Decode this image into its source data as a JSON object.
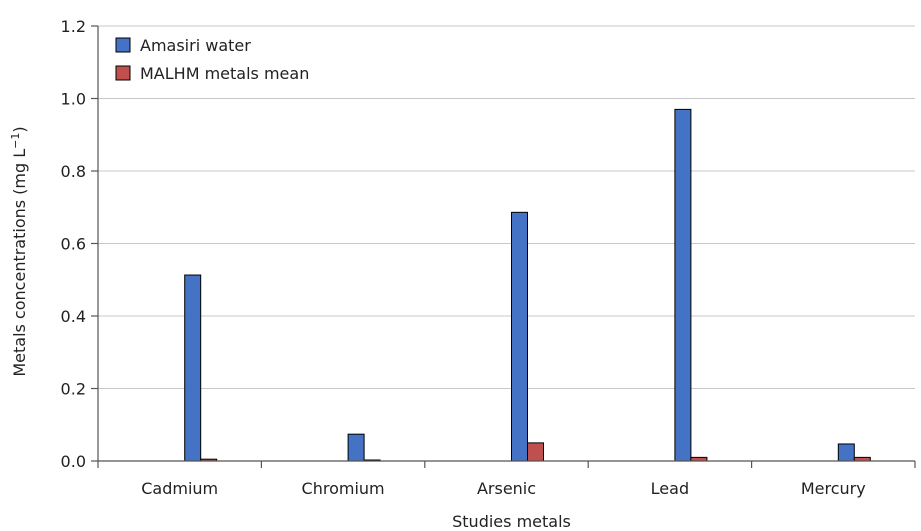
{
  "chart_data": {
    "type": "bar",
    "title": "",
    "xlabel": "Studies metals",
    "ylabel": "Metals concentrations (mg L",
    "ylabel_sup": "−1",
    "ylabel_close": ")",
    "ylim": [
      0,
      1.2
    ],
    "yticks": [
      0.0,
      0.2,
      0.4,
      0.6,
      0.8,
      1.0,
      1.2
    ],
    "ytick_labels": [
      "0.0",
      "0.2",
      "0.4",
      "0.6",
      "0.8",
      "1.0",
      "1.2"
    ],
    "grid": true,
    "legend_position": "top-left",
    "categories": [
      "Cadmium",
      "Chromium",
      "Arsenic",
      "Lead",
      "Mercury"
    ],
    "series": [
      {
        "name": "Amasiri water",
        "color": "#4472c4",
        "values": [
          0.513,
          0.074,
          0.686,
          0.97,
          0.047
        ]
      },
      {
        "name": "MALHM metals mean",
        "color": "#c0504d",
        "values": [
          0.005,
          0.002,
          0.05,
          0.01,
          0.01
        ]
      }
    ]
  }
}
